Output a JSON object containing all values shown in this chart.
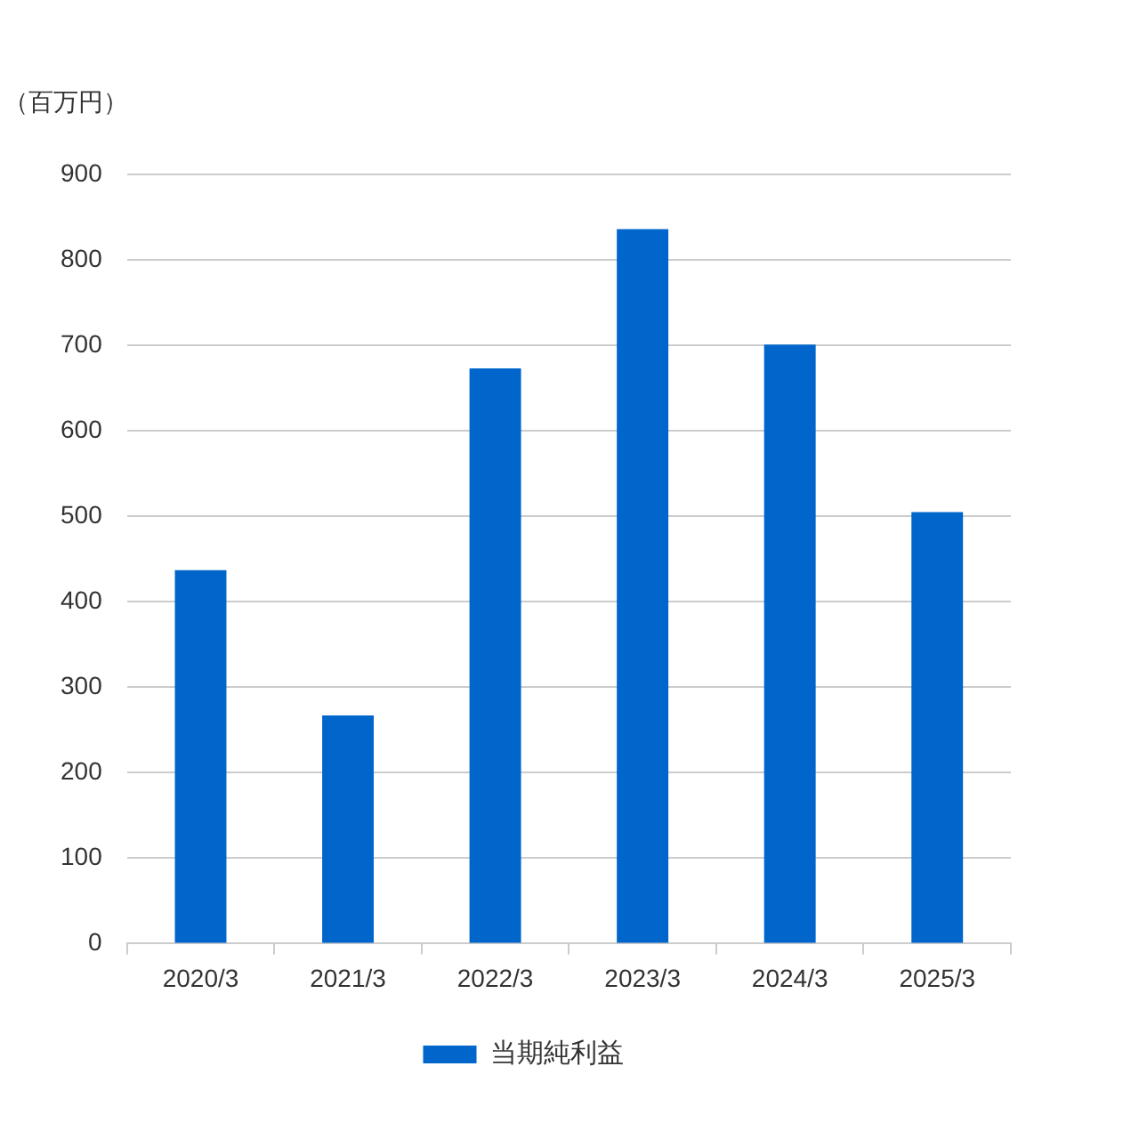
{
  "chart_data": {
    "type": "bar",
    "ylabel": "（百万円）",
    "categories": [
      "2020/3",
      "2021/3",
      "2022/3",
      "2023/3",
      "2024/3",
      "2025/3"
    ],
    "series": [
      {
        "name": "当期純利益",
        "color": "#0066cc",
        "values": [
          437,
          267,
          673,
          836,
          701,
          505
        ]
      }
    ],
    "ylim": [
      0,
      900
    ],
    "yticks": [
      0,
      100,
      200,
      300,
      400,
      500,
      600,
      700,
      800,
      900
    ],
    "grid": "y",
    "legend": "bottom"
  }
}
